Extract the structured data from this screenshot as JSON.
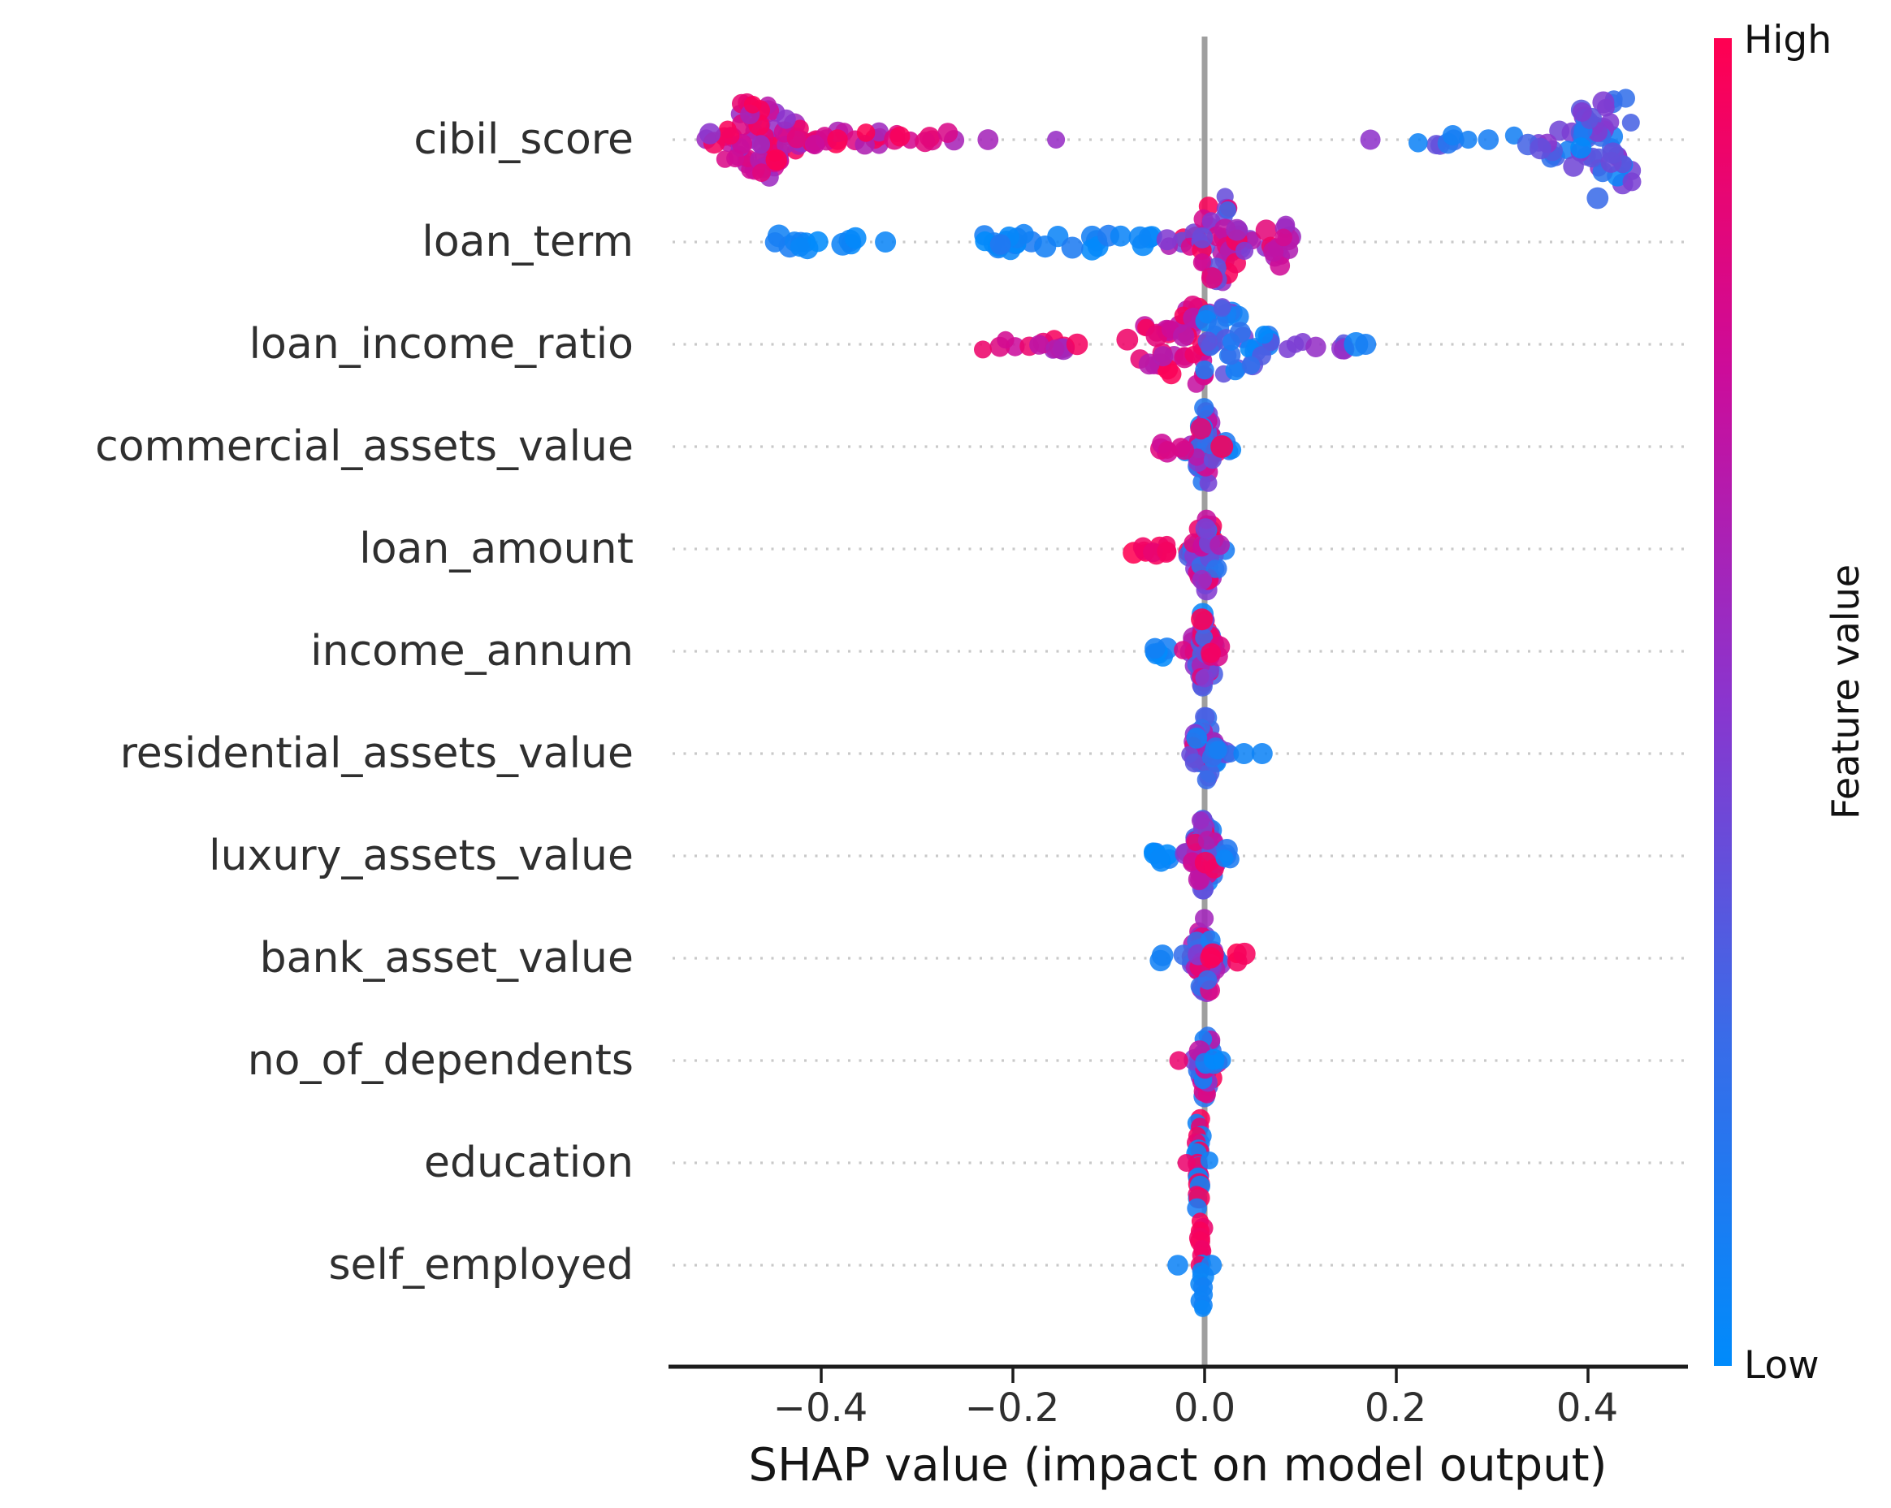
{
  "palette": {
    "background": "#ffffff",
    "text": "#2f2f2f",
    "axis_spine": "#1c1c1c",
    "zero_line": "#9f9f9f",
    "gridline": "#c9c9c9",
    "low_color": "#008bfb",
    "high_color": "#ff0051"
  },
  "colorbar": {
    "high_label": "High",
    "low_label": "Low",
    "title": "Feature value"
  },
  "x_axis": {
    "label": "SHAP value (impact on model output)",
    "ticks": [
      -0.4,
      -0.2,
      0.0,
      0.2,
      0.4
    ],
    "tick_labels": [
      "−0.4",
      "−0.2",
      "0.0",
      "0.2",
      "0.4"
    ]
  },
  "chart_data": {
    "type": "beeswarm",
    "xlabel": "SHAP value (impact on model output)",
    "xlim": [
      -0.56,
      0.505
    ],
    "xticks": [
      -0.4,
      -0.2,
      0.0,
      0.2,
      0.4
    ],
    "legend": {
      "title": "Feature value",
      "high": "High",
      "low": "Low"
    },
    "colormap": [
      [
        0.0,
        [
          0,
          139,
          251
        ]
      ],
      [
        0.25,
        [
          58,
          107,
          232
        ]
      ],
      [
        0.5,
        [
          138,
          53,
          206
        ]
      ],
      [
        0.75,
        [
          204,
          12,
          154
        ]
      ],
      [
        1.0,
        [
          255,
          0,
          81
        ]
      ]
    ],
    "features": [
      {
        "name": "cibil_score",
        "groups": [
          {
            "shape": "cluster",
            "cx": -0.465,
            "sx": 0.028,
            "n": 72,
            "ys": 55,
            "v": [
              0.5,
              1
            ]
          },
          {
            "shape": "band",
            "x": [
              -0.43,
              -0.335
            ],
            "n": 13,
            "ys": 10,
            "v": [
              0.55,
              1
            ]
          },
          {
            "shape": "point",
            "x": -0.383,
            "dy": 0,
            "v": 0.97
          },
          {
            "shape": "band",
            "x": [
              -0.325,
              -0.258
            ],
            "n": 9,
            "ys": 9,
            "v": [
              0.6,
              1
            ]
          },
          {
            "shape": "point",
            "x": -0.226,
            "dy": 0,
            "v": 0.6
          },
          {
            "shape": "point",
            "x": -0.155,
            "dy": 0,
            "v": 0.55
          },
          {
            "shape": "point",
            "x": 0.173,
            "dy": 0,
            "v": 0.52
          },
          {
            "shape": "band",
            "x": [
              0.214,
              0.262
            ],
            "n": 6,
            "ys": 7,
            "v": [
              0.05,
              0.5
            ]
          },
          {
            "shape": "point",
            "x": 0.275,
            "dy": 0,
            "v": 0.08
          },
          {
            "shape": "point",
            "x": 0.296,
            "dy": 0,
            "v": 0.1
          },
          {
            "shape": "funnel",
            "x": [
              0.318,
              0.447
            ],
            "dir": 1,
            "n": 58,
            "ys": 60,
            "v": [
              0.0,
              0.55
            ]
          },
          {
            "shape": "point",
            "x": 0.41,
            "dy": 72,
            "v": 0.25
          }
        ]
      },
      {
        "name": "loan_term",
        "groups": [
          {
            "shape": "band",
            "x": [
              -0.452,
              -0.36
            ],
            "n": 13,
            "ys": 9,
            "v": [
              0,
              0.15
            ],
            "r": 13
          },
          {
            "shape": "point",
            "x": -0.333,
            "dy": 0,
            "v": 0.05,
            "r": 13
          },
          {
            "shape": "band",
            "x": [
              -0.237,
              -0.1
            ],
            "n": 22,
            "ys": 11,
            "v": [
              0,
              0.15
            ],
            "r": 13
          },
          {
            "shape": "band",
            "x": [
              -0.09,
              -0.054
            ],
            "n": 5,
            "ys": 9,
            "v": [
              0,
              0.12
            ],
            "r": 13
          },
          {
            "shape": "cluster",
            "cx": 0.016,
            "sx": 0.015,
            "n": 46,
            "ys": 62,
            "v": [
              0.25,
              1
            ]
          },
          {
            "shape": "point",
            "x": 0.005,
            "dy": 88,
            "v": 0.6
          },
          {
            "shape": "point",
            "x": 0.01,
            "dy": 125,
            "v": 0.1
          },
          {
            "shape": "cluster",
            "cx": 0.077,
            "sx": 0.011,
            "n": 14,
            "ys": 34,
            "v": [
              0.5,
              1
            ]
          }
        ]
      },
      {
        "name": "loan_income_ratio",
        "groups": [
          {
            "shape": "band",
            "x": [
              -0.24,
              -0.146
            ],
            "n": 13,
            "ys": 9,
            "v": [
              0.55,
              1
            ]
          },
          {
            "shape": "point",
            "x": -0.133,
            "dy": 0,
            "v": 0.95
          },
          {
            "shape": "funnel",
            "x": [
              -0.092,
              0.0
            ],
            "dir": 1,
            "n": 42,
            "ys": 58,
            "v": [
              0.62,
              1
            ]
          },
          {
            "shape": "funnel",
            "x": [
              0.0,
              0.076
            ],
            "dir": -1,
            "n": 36,
            "ys": 60,
            "v": [
              0,
              0.5
            ]
          },
          {
            "shape": "point",
            "x": 0.004,
            "dy": 95,
            "v": 0.55
          },
          {
            "shape": "point",
            "x": 0.008,
            "dy": 112,
            "v": 0.3
          },
          {
            "shape": "band",
            "x": [
              0.082,
              0.108
            ],
            "n": 3,
            "ys": 6,
            "v": [
              0.45,
              0.62
            ]
          },
          {
            "shape": "band",
            "x": [
              0.115,
              0.148
            ],
            "n": 4,
            "ys": 7,
            "v": [
              0.3,
              0.55
            ]
          },
          {
            "shape": "point",
            "x": 0.158,
            "dy": 0,
            "v": 0.06,
            "r": 15
          },
          {
            "shape": "point",
            "x": 0.168,
            "dy": 0,
            "v": 0.1,
            "r": 13
          }
        ]
      },
      {
        "name": "commercial_assets_value",
        "groups": [
          {
            "shape": "cluster",
            "cx": 0.0,
            "sx": 0.0075,
            "n": 46,
            "ys": 52,
            "v": [
              0,
              1
            ]
          },
          {
            "shape": "band",
            "x": [
              -0.046,
              -0.02
            ],
            "n": 6,
            "ys": 8,
            "v": [
              0.75,
              1
            ]
          },
          {
            "shape": "band",
            "x": [
              0.01,
              0.034
            ],
            "n": 4,
            "ys": 7,
            "v": [
              0,
              0.25
            ]
          },
          {
            "shape": "point",
            "x": 0.018,
            "dy": 0,
            "v": 0.97,
            "r": 14
          }
        ]
      },
      {
        "name": "loan_amount",
        "groups": [
          {
            "shape": "band",
            "x": [
              -0.075,
              -0.03
            ],
            "n": 10,
            "ys": 8,
            "v": [
              0.85,
              1
            ]
          },
          {
            "shape": "cluster",
            "cx": 0.001,
            "sx": 0.0095,
            "n": 46,
            "ys": 52,
            "v": [
              0,
              1
            ]
          },
          {
            "shape": "point",
            "x": -0.002,
            "dy": 80,
            "v": 0.05
          }
        ]
      },
      {
        "name": "income_annum",
        "groups": [
          {
            "shape": "band",
            "x": [
              -0.054,
              -0.025
            ],
            "n": 7,
            "ys": 7,
            "v": [
              0,
              0.15
            ]
          },
          {
            "shape": "cluster",
            "cx": 0.0,
            "sx": 0.008,
            "n": 42,
            "ys": 48,
            "v": [
              0.2,
              1
            ]
          },
          {
            "shape": "band",
            "x": [
              0.005,
              0.02
            ],
            "n": 4,
            "ys": 8,
            "v": [
              0.8,
              1
            ]
          }
        ]
      },
      {
        "name": "residential_assets_value",
        "groups": [
          {
            "shape": "cluster",
            "cx": -0.001,
            "sx": 0.008,
            "n": 42,
            "ys": 50,
            "v": [
              0,
              1
            ]
          },
          {
            "shape": "band",
            "x": [
              0.002,
              0.03
            ],
            "n": 6,
            "ys": 8,
            "v": [
              0,
              0.2
            ]
          },
          {
            "shape": "point",
            "x": 0.041,
            "dy": 0,
            "v": 0.06,
            "r": 13
          },
          {
            "shape": "point",
            "x": 0.06,
            "dy": 0,
            "v": 0.06,
            "r": 13
          }
        ]
      },
      {
        "name": "luxury_assets_value",
        "groups": [
          {
            "shape": "band",
            "x": [
              -0.057,
              -0.028
            ],
            "n": 7,
            "ys": 7,
            "v": [
              0,
              0.15
            ]
          },
          {
            "shape": "cluster",
            "cx": 0.0,
            "sx": 0.0085,
            "n": 44,
            "ys": 50,
            "v": [
              0,
              1
            ]
          },
          {
            "shape": "band",
            "x": [
              0.007,
              0.028
            ],
            "n": 4,
            "ys": 8,
            "v": [
              0,
              0.2
            ]
          }
        ]
      },
      {
        "name": "bank_asset_value",
        "groups": [
          {
            "shape": "band",
            "x": [
              -0.05,
              -0.034
            ],
            "n": 2,
            "ys": 5,
            "v": [
              0,
              0.15
            ]
          },
          {
            "shape": "cluster",
            "cx": 0.0,
            "sx": 0.0085,
            "n": 42,
            "ys": 50,
            "v": [
              0.1,
              1
            ]
          },
          {
            "shape": "band",
            "x": [
              0.006,
              0.046
            ],
            "n": 5,
            "ys": 8,
            "v": [
              0.85,
              1
            ],
            "r": 13
          }
        ]
      },
      {
        "name": "no_of_dependents",
        "groups": [
          {
            "shape": "cluster",
            "cx": 0.0,
            "sx": 0.006,
            "n": 32,
            "ys": 46,
            "v": [
              0,
              1
            ]
          },
          {
            "shape": "point",
            "x": -0.027,
            "dy": 0,
            "v": 0.9
          },
          {
            "shape": "band",
            "x": [
              -0.004,
              0.024
            ],
            "n": 4,
            "ys": 7,
            "v": [
              0,
              0.2
            ]
          }
        ]
      },
      {
        "name": "education",
        "groups": [
          {
            "shape": "stack",
            "x": [
              -0.009,
              -0.002
            ],
            "n": 22,
            "ys": 52,
            "vlist": [
              0.95,
              0.05,
              0.9,
              0.08,
              0.97,
              0.12,
              0.88,
              0.03
            ]
          },
          {
            "shape": "point",
            "x": -0.019,
            "dy": 0,
            "v": 0.9
          },
          {
            "shape": "point",
            "x": 0.005,
            "dy": -3,
            "v": 0.06
          }
        ]
      },
      {
        "name": "self_employed",
        "groups": [
          {
            "shape": "stack",
            "x": [
              -0.007,
              -0.001
            ],
            "n": 18,
            "ys": 54,
            "vmode": "topred"
          },
          {
            "shape": "point",
            "x": -0.028,
            "dy": 0,
            "v": 0.06
          },
          {
            "shape": "point",
            "x": 0.007,
            "dy": 0,
            "v": 0.06
          }
        ]
      }
    ]
  }
}
